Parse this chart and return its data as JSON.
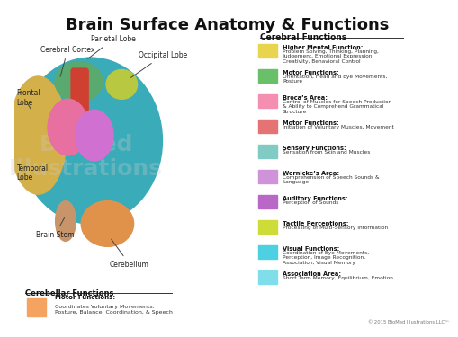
{
  "title": "Brain Surface Anatomy & Functions",
  "title_fontsize": 13,
  "bg_color": "#ffffff",
  "cerebral_functions_title": "Cerebral Functions",
  "cerebellar_functions_title": "Cerebellar Functions",
  "cerebral_entries": [
    {
      "color": "#e8d44d",
      "bold_text": "Higher Mental Function:",
      "normal_text": "Problem Solving, Thinking, Planning,\nJudgement, Emotional Expression,\nCreativity, Behavioral Control"
    },
    {
      "color": "#6abf69",
      "bold_text": "Motor Functions:",
      "normal_text": "Orientation, Head and Eye Movements,\nPosture"
    },
    {
      "color": "#f48fb1",
      "bold_text": "Broca’s Area:",
      "normal_text": "Control of Muscles for Speech Production\n& Ability to Comprehend Grammatical\nStructure"
    },
    {
      "color": "#e57373",
      "bold_text": "Motor Functions:",
      "normal_text": "Initiation of Voluntary Muscles, Movement"
    },
    {
      "color": "#80cbc4",
      "bold_text": "Sensory Functions:",
      "normal_text": "Sensation from Skin and Muscles"
    },
    {
      "color": "#ce93d8",
      "bold_text": "Wernicke’s Area:",
      "normal_text": "Comprehension of Speech Sounds &\nLanguage"
    },
    {
      "color": "#ba68c8",
      "bold_text": "Auditory Functions:",
      "normal_text": "Perception of Sounds"
    },
    {
      "color": "#cddc39",
      "bold_text": "Tactile Perceptions:",
      "normal_text": "Processing of Multi-Sensory Information"
    },
    {
      "color": "#4dd0e1",
      "bold_text": "Visual Functions:",
      "normal_text": "Coordination of Eye Movements,\nPerception, Image Recognition,\nAssociation, Visual Memory"
    },
    {
      "color": "#80deea",
      "bold_text": "Association Area:",
      "normal_text": "Short Term Memory, Equilibrium, Emotion"
    }
  ],
  "cerebellar_entries": [
    {
      "color": "#f4a460",
      "bold_text": "Motor Functions:",
      "normal_text": "Coordinates Voluntary Movements:\nPosture, Balance, Coordination, & Speech"
    }
  ],
  "copyright": "© 2015 BioMed Illustrations LLC™",
  "label_fontsize": 5.5
}
